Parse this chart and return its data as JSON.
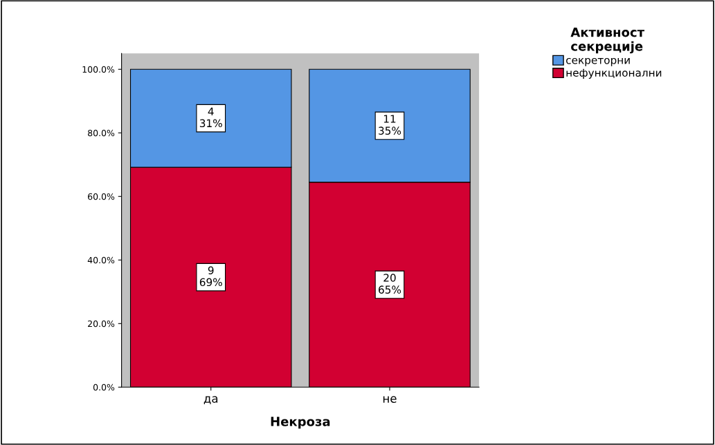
{
  "chart_data": {
    "type": "bar",
    "stacked": true,
    "xlabel": "Некроза",
    "legend_title": "Активност\nсекреције",
    "legend": "top right",
    "categories": [
      "да",
      "не"
    ],
    "series": [
      {
        "name": "нефункционални",
        "color": "#d20032",
        "values": [
          69.2,
          64.5
        ],
        "value_labels": [
          "9\n69%",
          "20\n65%"
        ]
      },
      {
        "name": "секреторни",
        "color": "#5496e4",
        "values": [
          30.8,
          35.5
        ],
        "value_labels": [
          "4\n31%",
          "11\n35%"
        ]
      }
    ],
    "ylim": [
      0,
      105
    ],
    "yticks": [
      {
        "value": 0,
        "label": "0.0%"
      },
      {
        "value": 20,
        "label": "20.0%"
      },
      {
        "value": 40,
        "label": "40.0%"
      },
      {
        "value": 60,
        "label": "60.0%"
      },
      {
        "value": 80,
        "label": "80.0%"
      },
      {
        "value": 100,
        "label": "100.0%"
      }
    ],
    "grid": false
  }
}
